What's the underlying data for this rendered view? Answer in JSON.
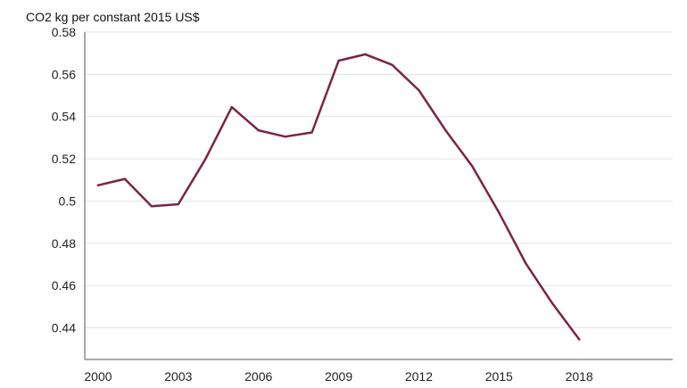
{
  "chart_data": {
    "type": "line",
    "title": "",
    "ylabel": "CO2 kg per constant 2015 US$",
    "xlabel": "",
    "x": [
      2000,
      2001,
      2002,
      2003,
      2004,
      2005,
      2006,
      2007,
      2008,
      2009,
      2010,
      2011,
      2012,
      2013,
      2014,
      2015,
      2016,
      2017,
      2018
    ],
    "series": [
      {
        "name": "",
        "color": "#7d2248",
        "values": [
          0.5075,
          0.5105,
          0.4975,
          0.4985,
          0.5195,
          0.5445,
          0.5335,
          0.5305,
          0.5325,
          0.5665,
          0.5695,
          0.5645,
          0.5525,
          0.5335,
          0.5165,
          0.4945,
          0.4705,
          0.4515,
          0.4345
        ]
      }
    ],
    "ylim": [
      0.425,
      0.58
    ],
    "xlim": [
      1999.5,
      2021.5
    ],
    "y_ticks": [
      0.44,
      0.46,
      0.48,
      0.5,
      0.52,
      0.54,
      0.56,
      0.58
    ],
    "y_tick_labels": [
      "0.44",
      "0.46",
      "0.48",
      "0.5",
      "0.52",
      "0.54",
      "0.56",
      "0.58"
    ],
    "x_ticks": [
      2000,
      2003,
      2006,
      2009,
      2012,
      2015,
      2018
    ],
    "x_tick_labels": [
      "2000",
      "2003",
      "2006",
      "2009",
      "2012",
      "2015",
      "2018"
    ],
    "grid": "horizontal",
    "legend": "none",
    "colors": {
      "line": "#7d2248",
      "grid": "#e3e3e3",
      "axis": "#555555"
    }
  }
}
